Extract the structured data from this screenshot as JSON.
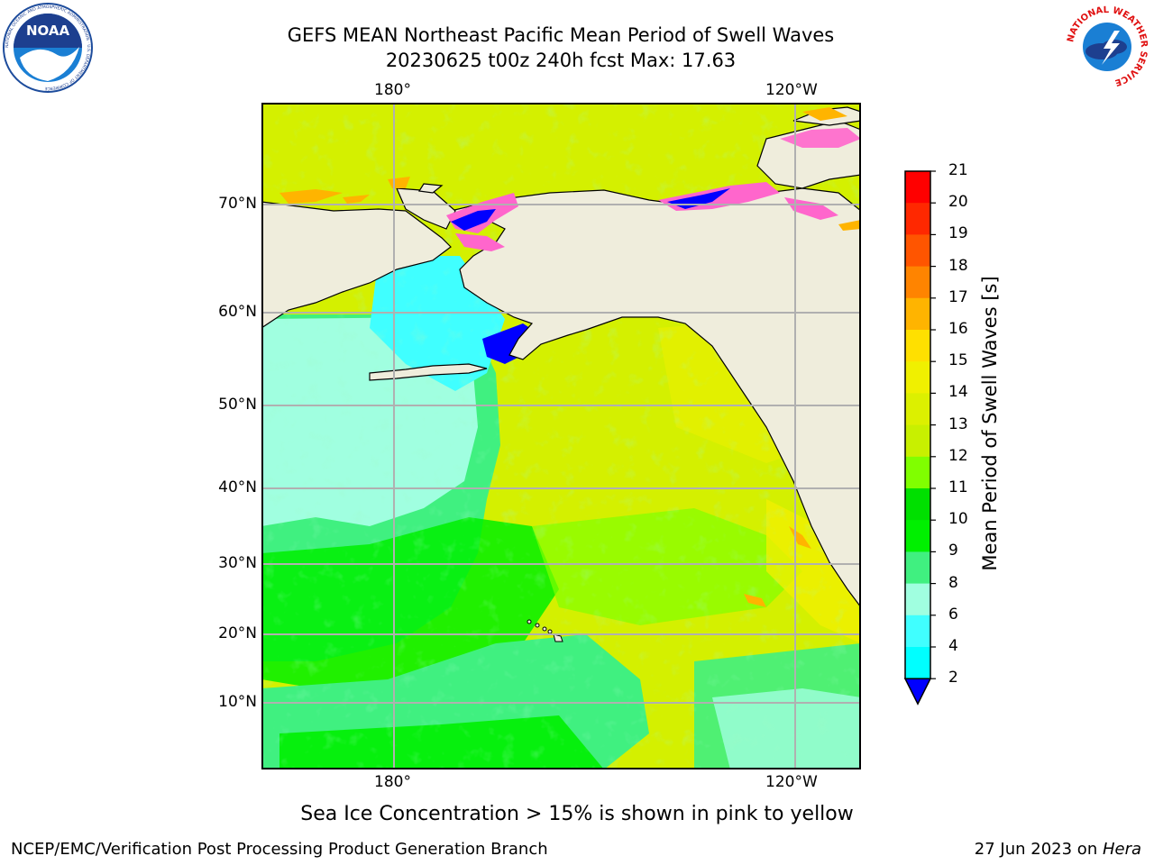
{
  "header": {
    "title_line1": "GEFS MEAN Northeast Pacific Mean Period of Swell Waves",
    "title_line2": "20230625 t00z 240h fcst   Max: 17.63"
  },
  "logos": {
    "left": {
      "text": "NOAA",
      "ring_text": "NATIONAL OCEANIC AND ATMOSPHERIC ADMINISTRATION · U.S. DEPARTMENT OF COMMERCE"
    },
    "right": {
      "ring_text": "NATIONAL WEATHER SERVICE"
    }
  },
  "map": {
    "lon_labels_top": [
      "180°",
      "120°W"
    ],
    "lon_labels_bottom": [
      "180°",
      "120°W"
    ],
    "lat_labels": [
      "70°N",
      "60°N",
      "50°N",
      "40°N",
      "30°N",
      "20°N",
      "10°N"
    ],
    "land_color": "#efeddc",
    "grid_color": "#b0b0b0"
  },
  "colorbar": {
    "title": "Mean Period of Swell Waves [s]",
    "ticks": [
      "21",
      "20",
      "19",
      "18",
      "17",
      "16",
      "15",
      "14",
      "13",
      "12",
      "11",
      "10",
      "9",
      "8",
      "6",
      "4",
      "2"
    ],
    "colors": [
      "#ff0000",
      "#ff2800",
      "#ff5500",
      "#ff8400",
      "#ffb400",
      "#ffe000",
      "#f0f000",
      "#dcf000",
      "#c8f000",
      "#80ff00",
      "#00e000",
      "#00f000",
      "#40f080",
      "#a0ffe0",
      "#40ffff",
      "#00ffff",
      "#0080ff",
      "#0000ff"
    ],
    "extend_color": "#0000ff"
  },
  "caption": "Sea Ice Concentration > 15% is shown in pink to yellow",
  "footer": {
    "left": "NCEP/EMC/Verification Post Processing Product Generation Branch",
    "right_prefix": "27 Jun 2023 on ",
    "right_machine": "Hera"
  }
}
